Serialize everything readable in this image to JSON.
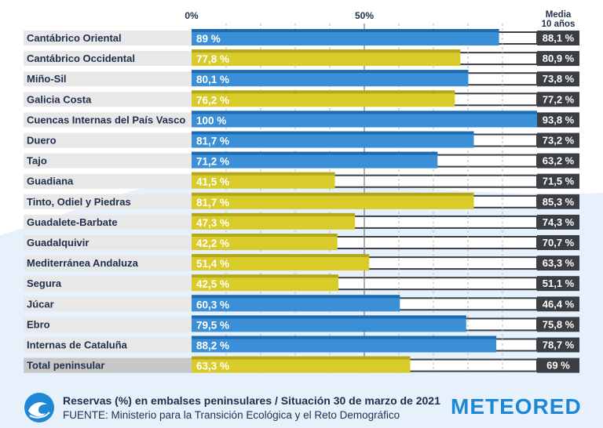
{
  "chart_data": {
    "type": "bar",
    "orientation": "horizontal",
    "title": "Reservas (%) en embalses peninsulares / Situación 30 de marzo de 2021",
    "source": "FUENTE: Ministerio para la Transición Ecológica y el Reto Demográfico",
    "xlim": [
      0,
      100
    ],
    "tick_labels": [
      "0%",
      "50%"
    ],
    "tick_values": [
      0,
      50
    ],
    "avg_header": [
      "Media",
      "10 años"
    ],
    "categories": [
      "Cantábrico Oriental",
      "Cantábrico Occidental",
      "Miño-Sil",
      "Galicia Costa",
      "Cuencas Internas del País Vasco",
      "Duero",
      "Tajo",
      "Guadiana",
      "Tinto, Odiel y Piedras",
      "Guadalete-Barbate",
      "Guadalquivir",
      "Mediterránea Andaluza",
      "Segura",
      "Júcar",
      "Ebro",
      "Internas de Cataluña",
      "Total peninsular"
    ],
    "values": [
      89,
      77.8,
      80.1,
      76.2,
      100,
      81.7,
      71.2,
      41.5,
      81.7,
      47.3,
      42.2,
      51.4,
      42.5,
      60.3,
      79.5,
      88.2,
      63.3
    ],
    "value_labels": [
      "89 %",
      "77,8 %",
      "80,1 %",
      "76,2 %",
      "100 %",
      "81,7 %",
      "71,2 %",
      "41,5 %",
      "81,7 %",
      "47,3 %",
      "42,2 %",
      "51,4 %",
      "42,5 %",
      "60,3 %",
      "79,5 %",
      "88,2 %",
      "63,3 %"
    ],
    "avg_10_years": [
      88.1,
      80.9,
      73.8,
      77.2,
      93.8,
      73.2,
      63.2,
      71.5,
      85.3,
      74.3,
      70.7,
      63.3,
      51.1,
      46.4,
      75.8,
      78.7,
      69
    ],
    "avg_labels": [
      "88,1 %",
      "80,9 %",
      "73,8 %",
      "77,2 %",
      "93,8 %",
      "73,2 %",
      "63,2 %",
      "71,5 %",
      "85,3 %",
      "74,3 %",
      "70,7 %",
      "63,3 %",
      "51,1 %",
      "46,4 %",
      "75,8 %",
      "78,7 %",
      "69 %"
    ],
    "bar_colors": [
      "blue",
      "yellow",
      "blue",
      "yellow",
      "blue",
      "blue",
      "blue",
      "yellow",
      "yellow",
      "yellow",
      "yellow",
      "yellow",
      "yellow",
      "blue",
      "blue",
      "blue",
      "yellow"
    ]
  },
  "colors": {
    "blue": "#3a8fd6",
    "blue_dark": "#1e6bb0",
    "yellow": "#d9cb2a",
    "yellow_dark": "#b3a81c",
    "label_bg": "#e8e8e8",
    "total_label_bg": "#c8c8c8",
    "track": "#3b3f44",
    "avg_box": "#3b3f44",
    "brand": "#1e88d6"
  },
  "footer": {
    "title": "Reservas (%) en embalses peninsulares / Situación 30 de marzo de 2021",
    "source": "FUENTE: Ministerio para la Transición Ecológica y el Reto Demográfico",
    "brand": "METEORED",
    "logo_icon": "wave-logo-icon"
  }
}
